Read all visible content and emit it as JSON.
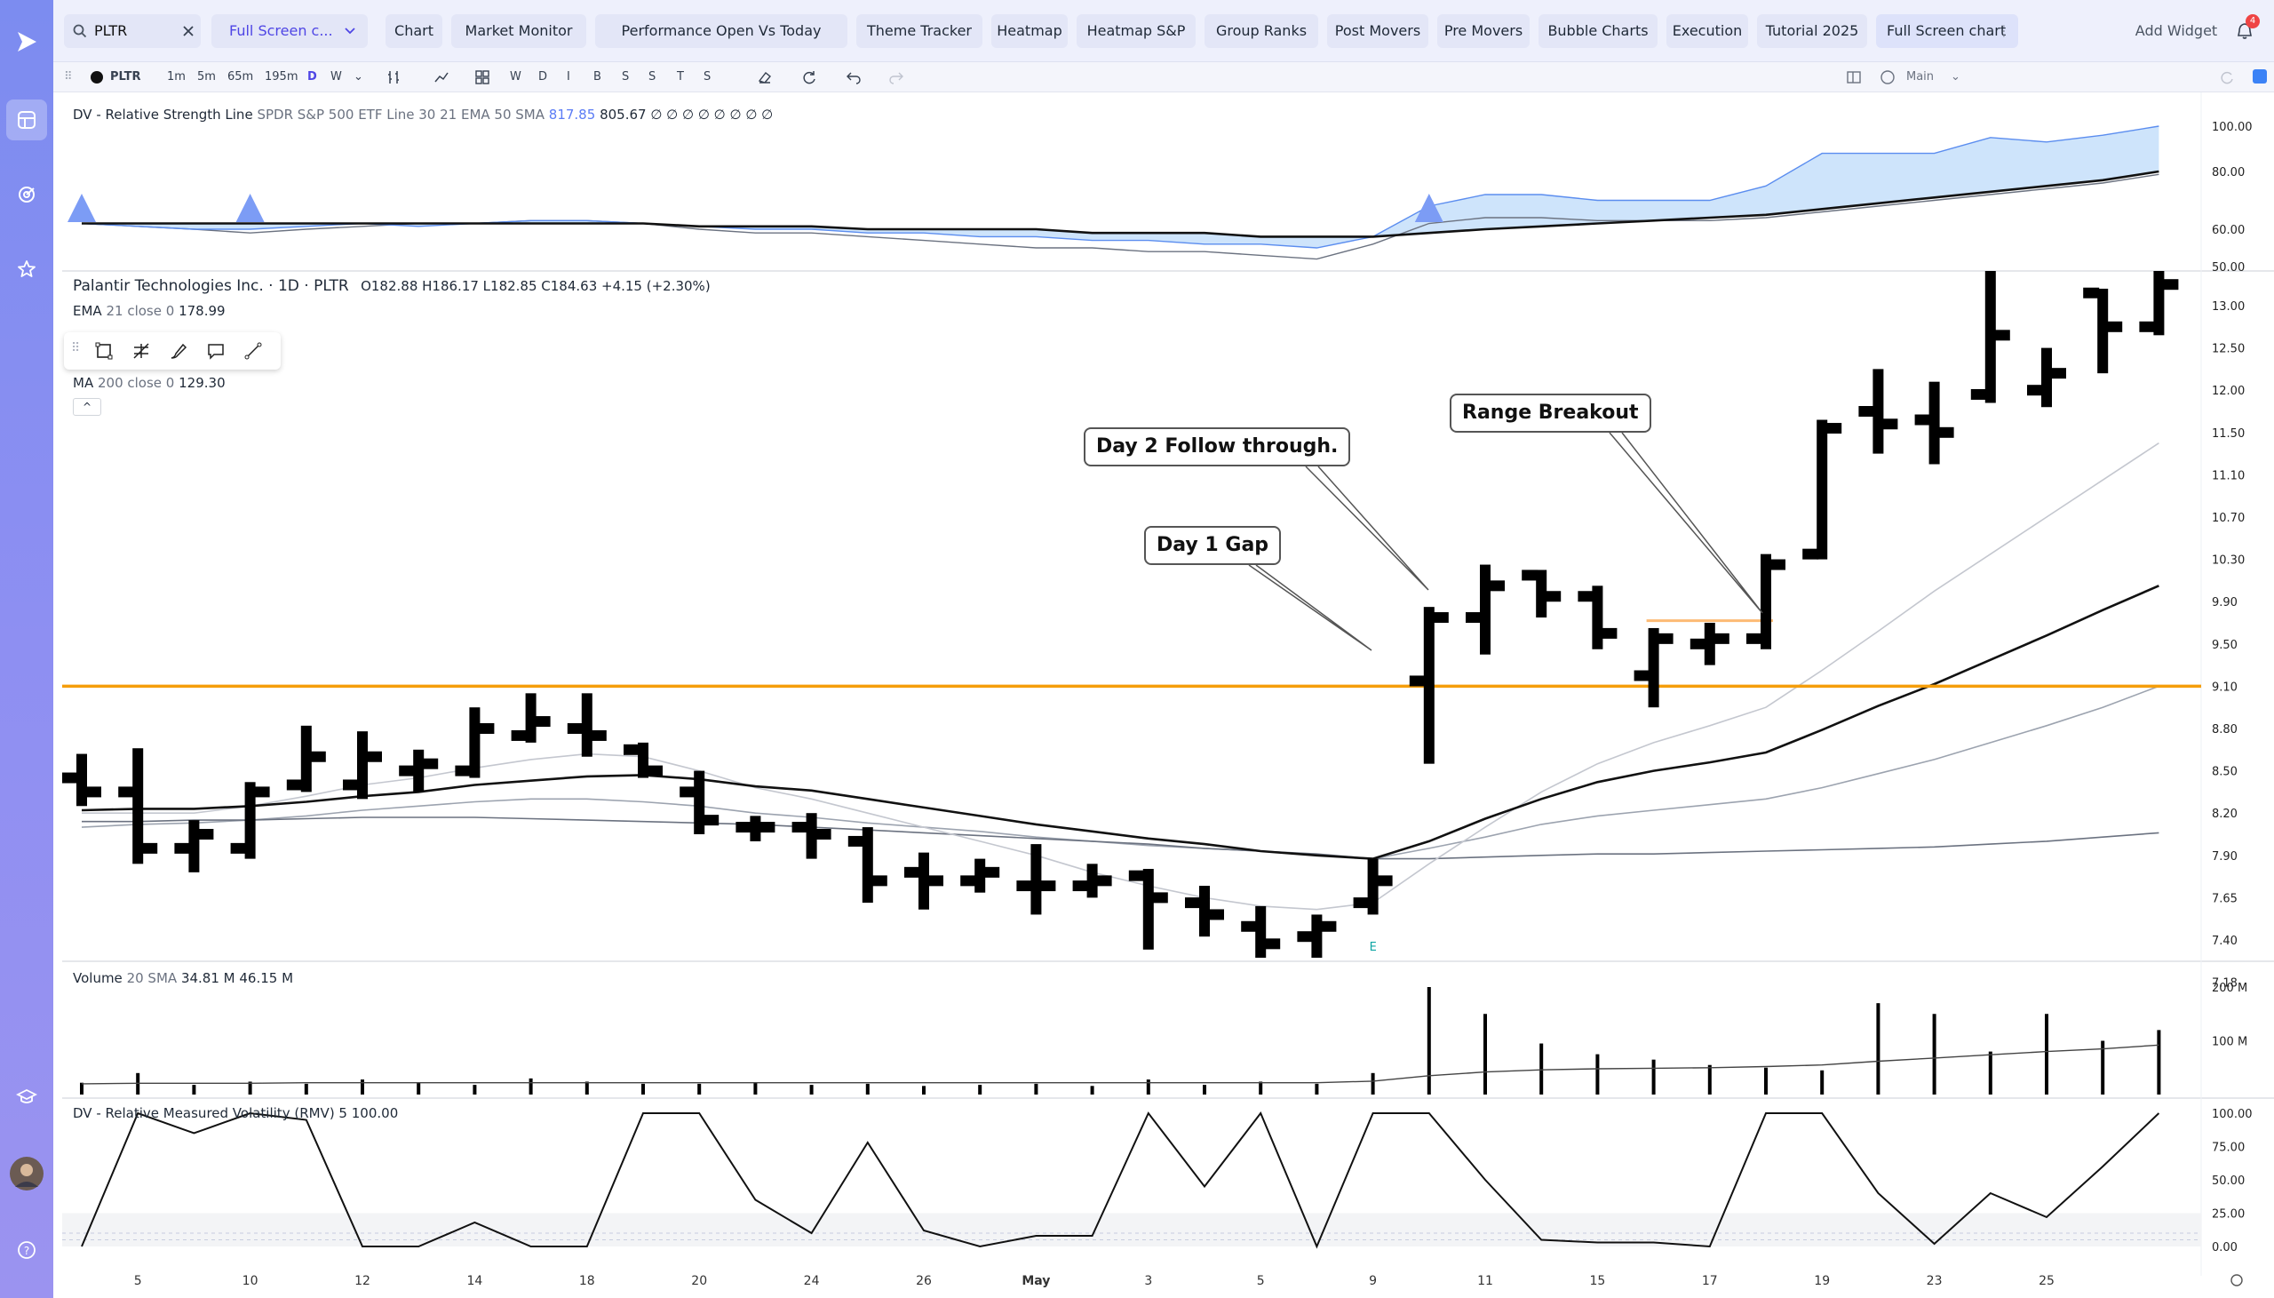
{
  "search": {
    "value": "PLTR"
  },
  "layout_selector": {
    "label": "Full Screen c..."
  },
  "tabs": [
    {
      "label": "Chart",
      "x": 0
    },
    {
      "label": "Market Monitor"
    },
    {
      "label": "Performance Open Vs Today"
    },
    {
      "label": "Theme Tracker"
    },
    {
      "label": "Heatmap"
    },
    {
      "label": "Heatmap S&P"
    },
    {
      "label": "Group Ranks"
    },
    {
      "label": "Post Movers"
    },
    {
      "label": "Pre Movers"
    },
    {
      "label": "Bubble Charts"
    },
    {
      "label": "Execution"
    },
    {
      "label": "Tutorial 2025"
    },
    {
      "label": "Full Screen chart"
    }
  ],
  "add_widget_label": "Add Widget",
  "notification_count": "4",
  "toolbar": {
    "symbol": "PLTR",
    "intervals": [
      "1m",
      "5m",
      "65m",
      "195m",
      "D",
      "W"
    ],
    "letters": [
      "W",
      "D",
      "I",
      "B",
      "S",
      "S",
      "T",
      "S"
    ],
    "layout_label": "Main"
  },
  "rs_legend": {
    "name": "DV - Relative Strength Line",
    "params": "SPDR S&P 500 ETF Line 30 21 EMA 50 SMA",
    "value_blue": "817.85",
    "value": "805.67",
    "symbols": "∅ ∅ ∅ ∅ ∅ ∅ ∅ ∅"
  },
  "main_legend": {
    "title": "Palantir Technologies Inc. · 1D · PLTR",
    "ohlc": "O182.88  H186.17  L182.85  C184.63  +4.15 (+2.30%)",
    "ema_label": "EMA",
    "ema_params": "21 close 0",
    "ema_value": "178.99",
    "ma_label": "MA",
    "ma_params": "200 close 0",
    "ma_value": "129.30"
  },
  "volume_legend": {
    "label": "Volume",
    "params": "20 SMA",
    "v1": "34.81 M",
    "v2": "46.15 M"
  },
  "rmv_legend": {
    "label": "DV - Relative Measured Volatility (RMV) 5",
    "value": "100.00"
  },
  "callouts": {
    "gap": "Day 1 Gap",
    "follow": "Day 2 Follow through.",
    "breakout": "Range Breakout"
  },
  "earnings_marker": "E",
  "colors": {
    "accent": "#4f46e5",
    "level_line": "#f59e0b",
    "rs_fill": "#a5cdf7",
    "bar": "#000000"
  },
  "chart_data": {
    "type": "ohlc",
    "x_tick_labels": [
      "5",
      "10",
      "12",
      "14",
      "18",
      "20",
      "24",
      "26",
      "May",
      "3",
      "5",
      "9",
      "11",
      "15",
      "17",
      "19",
      "23",
      "25"
    ],
    "y_tick_labels_price": [
      "13.00",
      "12.50",
      "12.00",
      "11.50",
      "11.10",
      "10.70",
      "10.30",
      "9.90",
      "9.50",
      "9.10",
      "8.80",
      "8.50",
      "8.20",
      "7.90",
      "7.65",
      "7.40",
      "7.18"
    ],
    "y_tick_labels_rs": [
      "100.00",
      "80.00",
      "60.00",
      "50.00"
    ],
    "y_tick_labels_volume": [
      "200 M",
      "100 M"
    ],
    "y_tick_labels_rmv": [
      "100.00",
      "75.00",
      "50.00",
      "25.00",
      "0.00"
    ],
    "horizontal_level": 9.1,
    "bars": [
      {
        "o": 8.45,
        "h": 8.62,
        "l": 8.25,
        "c": 8.35
      },
      {
        "o": 8.35,
        "h": 8.66,
        "l": 7.85,
        "c": 7.95
      },
      {
        "o": 7.95,
        "h": 8.15,
        "l": 7.8,
        "c": 8.05
      },
      {
        "o": 7.95,
        "h": 8.42,
        "l": 7.88,
        "c": 8.35
      },
      {
        "o": 8.4,
        "h": 8.82,
        "l": 8.35,
        "c": 8.6
      },
      {
        "o": 8.4,
        "h": 8.78,
        "l": 8.3,
        "c": 8.6
      },
      {
        "o": 8.5,
        "h": 8.65,
        "l": 8.35,
        "c": 8.55
      },
      {
        "o": 8.5,
        "h": 8.95,
        "l": 8.45,
        "c": 8.8
      },
      {
        "o": 8.75,
        "h": 9.05,
        "l": 8.7,
        "c": 8.85
      },
      {
        "o": 8.8,
        "h": 9.05,
        "l": 8.6,
        "c": 8.75
      },
      {
        "o": 8.65,
        "h": 8.7,
        "l": 8.45,
        "c": 8.5
      },
      {
        "o": 8.35,
        "h": 8.5,
        "l": 8.05,
        "c": 8.15
      },
      {
        "o": 8.1,
        "h": 8.18,
        "l": 8.0,
        "c": 8.1
      },
      {
        "o": 8.1,
        "h": 8.2,
        "l": 7.88,
        "c": 8.05
      },
      {
        "o": 8.0,
        "h": 8.1,
        "l": 7.62,
        "c": 7.75
      },
      {
        "o": 7.8,
        "h": 7.92,
        "l": 7.58,
        "c": 7.75
      },
      {
        "o": 7.75,
        "h": 7.88,
        "l": 7.68,
        "c": 7.8
      },
      {
        "o": 7.72,
        "h": 7.98,
        "l": 7.55,
        "c": 7.72
      },
      {
        "o": 7.72,
        "h": 7.85,
        "l": 7.65,
        "c": 7.75
      },
      {
        "o": 7.78,
        "h": 7.82,
        "l": 7.35,
        "c": 7.65
      },
      {
        "o": 7.62,
        "h": 7.72,
        "l": 7.42,
        "c": 7.55
      },
      {
        "o": 7.48,
        "h": 7.6,
        "l": 7.22,
        "c": 7.38
      },
      {
        "o": 7.42,
        "h": 7.55,
        "l": 7.28,
        "c": 7.48
      },
      {
        "o": 7.62,
        "h": 7.88,
        "l": 7.55,
        "c": 7.75
      },
      {
        "o": 9.15,
        "h": 9.85,
        "l": 8.55,
        "c": 9.75
      },
      {
        "o": 9.75,
        "h": 10.25,
        "l": 9.4,
        "c": 10.05
      },
      {
        "o": 10.15,
        "h": 10.2,
        "l": 9.75,
        "c": 9.95
      },
      {
        "o": 9.95,
        "h": 10.05,
        "l": 9.45,
        "c": 9.6
      },
      {
        "o": 9.2,
        "h": 9.65,
        "l": 8.95,
        "c": 9.55
      },
      {
        "o": 9.5,
        "h": 9.7,
        "l": 9.3,
        "c": 9.55
      },
      {
        "o": 9.55,
        "h": 10.35,
        "l": 9.45,
        "c": 10.25
      },
      {
        "o": 10.35,
        "h": 11.65,
        "l": 10.3,
        "c": 11.55
      },
      {
        "o": 11.75,
        "h": 12.25,
        "l": 11.3,
        "c": 11.6
      },
      {
        "o": 11.65,
        "h": 12.1,
        "l": 11.2,
        "c": 11.5
      },
      {
        "o": 11.95,
        "h": 13.45,
        "l": 11.85,
        "c": 12.65
      },
      {
        "o": 12.0,
        "h": 12.5,
        "l": 11.8,
        "c": 12.2
      },
      {
        "o": 13.15,
        "h": 13.2,
        "l": 12.2,
        "c": 12.75
      },
      {
        "o": 12.75,
        "h": 13.55,
        "l": 12.65,
        "c": 13.25
      }
    ],
    "ema21": [
      8.22,
      8.23,
      8.23,
      8.25,
      8.28,
      8.32,
      8.35,
      8.4,
      8.43,
      8.46,
      8.47,
      8.44,
      8.39,
      8.36,
      8.3,
      8.24,
      8.18,
      8.12,
      8.07,
      8.02,
      7.98,
      7.93,
      7.9,
      7.88,
      8.0,
      8.16,
      8.3,
      8.42,
      8.5,
      8.56,
      8.63,
      8.79,
      8.96,
      9.12,
      9.35,
      9.58,
      9.82,
      10.05
    ],
    "sma50": [
      8.14,
      8.14,
      8.15,
      8.15,
      8.16,
      8.17,
      8.17,
      8.17,
      8.16,
      8.15,
      8.14,
      8.13,
      8.12,
      8.1,
      8.08,
      8.06,
      8.04,
      8.02,
      8.0,
      7.98,
      7.95,
      7.93,
      7.91,
      7.88,
      7.88,
      7.89,
      7.9,
      7.91,
      7.91,
      7.92,
      7.93,
      7.94,
      7.95,
      7.96,
      7.98,
      8.0,
      8.03,
      8.06
    ],
    "sma_light": [
      8.2,
      8.2,
      8.2,
      8.25,
      8.32,
      8.4,
      8.45,
      8.52,
      8.58,
      8.62,
      8.6,
      8.5,
      8.38,
      8.3,
      8.2,
      8.1,
      8.0,
      7.9,
      7.8,
      7.72,
      7.65,
      7.6,
      7.58,
      7.62,
      7.85,
      8.1,
      8.35,
      8.55,
      8.7,
      8.82,
      8.95,
      9.25,
      9.62,
      10.0,
      10.35,
      10.7,
      11.05,
      11.4
    ],
    "sma_gray2": [
      8.1,
      8.12,
      8.13,
      8.15,
      8.18,
      8.22,
      8.25,
      8.28,
      8.3,
      8.3,
      8.28,
      8.25,
      8.2,
      8.17,
      8.13,
      8.1,
      8.07,
      8.03,
      8.0,
      7.97,
      7.95,
      7.93,
      7.9,
      7.88,
      7.95,
      8.03,
      8.12,
      8.18,
      8.22,
      8.26,
      8.3,
      8.38,
      8.48,
      8.58,
      8.7,
      8.82,
      8.95,
      9.1
    ],
    "volume": [
      22,
      40,
      18,
      24,
      20,
      28,
      22,
      18,
      30,
      24,
      20,
      20,
      22,
      18,
      20,
      16,
      18,
      20,
      16,
      28,
      18,
      24,
      20,
      40,
      200,
      150,
      95,
      75,
      65,
      55,
      50,
      45,
      170,
      150,
      80,
      150,
      100,
      120
    ],
    "volume_sma": [
      20,
      21,
      21,
      21,
      22,
      22,
      22,
      22,
      22,
      22,
      22,
      22,
      22,
      22,
      22,
      22,
      22,
      22,
      22,
      22,
      22,
      22,
      22,
      25,
      35,
      42,
      46,
      48,
      49,
      50,
      52,
      55,
      62,
      68,
      74,
      80,
      85,
      92
    ],
    "rmv": [
      0,
      100,
      85,
      100,
      95,
      0,
      0,
      18,
      0,
      0,
      100,
      100,
      35,
      10,
      78,
      12,
      0,
      8,
      8,
      100,
      45,
      100,
      0,
      100,
      100,
      50,
      5,
      3,
      3,
      0,
      100,
      100,
      40,
      2,
      40,
      22,
      60,
      100
    ],
    "rs_line": [
      62,
      61,
      60,
      60,
      61,
      62,
      61,
      62,
      63,
      63,
      62,
      61,
      60,
      60,
      59,
      59,
      58,
      58,
      57,
      57,
      56,
      56,
      55,
      58,
      68,
      72,
      72,
      70,
      70,
      70,
      75,
      88,
      88,
      88,
      95,
      93,
      96,
      100
    ],
    "rs_ema": [
      62,
      62,
      62,
      62,
      62,
      62,
      62,
      62,
      62,
      62,
      62,
      61,
      61,
      61,
      60,
      60,
      60,
      60,
      59,
      59,
      59,
      58,
      58,
      58,
      59,
      60,
      61,
      62,
      63,
      64,
      65,
      67,
      69,
      71,
      73,
      75,
      77,
      80
    ],
    "rs_sma": [
      62,
      61,
      60,
      59,
      60,
      61,
      62,
      62,
      63,
      63,
      62,
      60,
      59,
      59,
      58,
      57,
      56,
      55,
      55,
      54,
      54,
      53,
      52,
      56,
      62,
      64,
      64,
      63,
      63,
      63,
      64,
      66,
      68,
      70,
      72,
      74,
      76,
      79
    ],
    "rs_new_high_markers": [
      0,
      3,
      24
    ]
  }
}
